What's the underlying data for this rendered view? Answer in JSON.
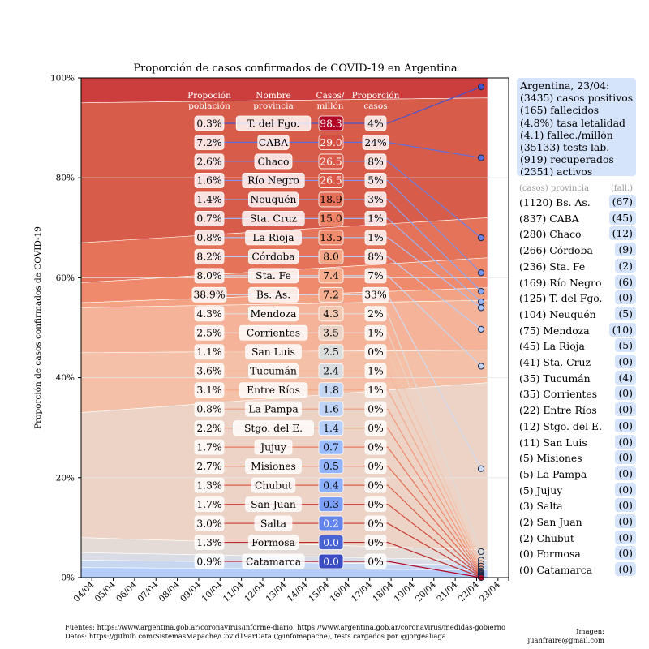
{
  "chart_data": {
    "type": "area",
    "title": "Proporción de casos confirmados de COVID-19 en Argentina",
    "ylabel": "Proporción de casos confirmados de COVID-19",
    "xlabel": "",
    "ylim": [
      0,
      100
    ],
    "yticks": [
      "0%",
      "20%",
      "40%",
      "60%",
      "80%",
      "100%"
    ],
    "categories": [
      "04/04",
      "05/04",
      "06/04",
      "07/04",
      "08/04",
      "09/04",
      "10/04",
      "11/04",
      "12/04",
      "13/04",
      "14/04",
      "15/04",
      "16/04",
      "17/04",
      "18/04",
      "19/04",
      "20/04",
      "21/04",
      "22/04",
      "23/04"
    ],
    "table_headers": {
      "poblacion": "Propoción población",
      "nombre": "Nombre provincia",
      "casos_millon": "Casos/ millón",
      "proporcion": "Proporción casos"
    },
    "rows": [
      {
        "pob": "0.3%",
        "name": "T. del Fgo.",
        "cpm": "98.3",
        "prop": "4%",
        "cpm_color": "#b40426",
        "line_color": "#4452cf",
        "end_y": 98.2
      },
      {
        "pob": "7.2%",
        "name": "CABA",
        "cpm": "29.0",
        "prop": "24%",
        "cpm_color": "#d44e41",
        "line_color": "#5a6fdd",
        "end_y": 84.0
      },
      {
        "pob": "2.6%",
        "name": "Chaco",
        "cpm": "26.5",
        "prop": "8%",
        "cpm_color": "#d95847",
        "line_color": "#6b82e4",
        "end_y": 68.0
      },
      {
        "pob": "1.6%",
        "name": "Río Negro",
        "cpm": "26.5",
        "prop": "5%",
        "cpm_color": "#d95847",
        "line_color": "#7b93ea",
        "end_y": 61.0
      },
      {
        "pob": "1.4%",
        "name": "Neuquén",
        "cpm": "18.9",
        "prop": "3%",
        "cpm_color": "#e57058",
        "line_color": "#8ba5ef",
        "end_y": 57.3
      },
      {
        "pob": "0.7%",
        "name": "Sta. Cruz",
        "cpm": "15.0",
        "prop": "1%",
        "cpm_color": "#ee8468",
        "line_color": "#9bb4f3",
        "end_y": 55.2
      },
      {
        "pob": "0.8%",
        "name": "La Rioja",
        "cpm": "13.5",
        "prop": "1%",
        "cpm_color": "#f08b6e",
        "line_color": "#abc2f5",
        "end_y": 54.0
      },
      {
        "pob": "8.2%",
        "name": "Córdoba",
        "cpm": "8.0",
        "prop": "8%",
        "cpm_color": "#f4a889",
        "line_color": "#b9cdf6",
        "end_y": 49.7
      },
      {
        "pob": "8.0%",
        "name": "Sta. Fe",
        "cpm": "7.4",
        "prop": "7%",
        "cpm_color": "#f5ad8e",
        "line_color": "#c6d5f3",
        "end_y": 42.3
      },
      {
        "pob": "38.9%",
        "name": "Bs. As.",
        "cpm": "7.2",
        "prop": "33%",
        "cpm_color": "#f5af90",
        "line_color": "#d2dbf0",
        "end_y": 21.8
      },
      {
        "pob": "4.3%",
        "name": "Mendoza",
        "cpm": "4.3",
        "prop": "2%",
        "cpm_color": "#f1c9b3",
        "line_color": "#e0dbd8",
        "end_y": 5.2
      },
      {
        "pob": "2.5%",
        "name": "Corrientes",
        "cpm": "3.5",
        "prop": "1%",
        "cpm_color": "#ead4c8",
        "line_color": "#ebd3c6",
        "end_y": 3.5
      },
      {
        "pob": "1.1%",
        "name": "San Luis",
        "cpm": "2.5",
        "prop": "0%",
        "cpm_color": "#dcdddd",
        "line_color": "#f2c6b1",
        "end_y": 2.8
      },
      {
        "pob": "3.6%",
        "name": "Tucumán",
        "cpm": "2.4",
        "prop": "1%",
        "cpm_color": "#d9dce1",
        "line_color": "#f5b89d",
        "end_y": 2.3
      },
      {
        "pob": "3.1%",
        "name": "Entre Ríos",
        "cpm": "1.8",
        "prop": "1%",
        "cpm_color": "#c5d6f2",
        "line_color": "#f4a98b",
        "end_y": 1.7
      },
      {
        "pob": "0.8%",
        "name": "La Pampa",
        "cpm": "1.6",
        "prop": "0%",
        "cpm_color": "#bfd3f6",
        "line_color": "#f29a7c",
        "end_y": 1.3
      },
      {
        "pob": "2.2%",
        "name": "Stgo. del E.",
        "cpm": "1.4",
        "prop": "0%",
        "cpm_color": "#b7cff9",
        "line_color": "#ee8a6d",
        "end_y": 1.0
      },
      {
        "pob": "1.7%",
        "name": "Jujuy",
        "cpm": "0.7",
        "prop": "0%",
        "cpm_color": "#9bbcff",
        "line_color": "#e97a5f",
        "end_y": 0.8
      },
      {
        "pob": "2.7%",
        "name": "Misiones",
        "cpm": "0.5",
        "prop": "0%",
        "cpm_color": "#93b5fe",
        "line_color": "#e36b53",
        "end_y": 0.6
      },
      {
        "pob": "1.3%",
        "name": "Chubut",
        "cpm": "0.4",
        "prop": "0%",
        "cpm_color": "#8db0fe",
        "line_color": "#db5c47",
        "end_y": 0.4
      },
      {
        "pob": "1.7%",
        "name": "San Juan",
        "cpm": "0.3",
        "prop": "0%",
        "cpm_color": "#7b9ff9",
        "line_color": "#d24c3c",
        "end_y": 0.3
      },
      {
        "pob": "3.0%",
        "name": "Salta",
        "cpm": "0.2",
        "prop": "0%",
        "cpm_color": "#6384eb",
        "line_color": "#c73b32",
        "end_y": 0.2
      },
      {
        "pob": "1.3%",
        "name": "Formosa",
        "cpm": "0.0",
        "prop": "0%",
        "cpm_color": "#4a63d3",
        "line_color": "#bc2a2a",
        "end_y": 0.1
      },
      {
        "pob": "0.9%",
        "name": "Catamarca",
        "cpm": "0.0",
        "prop": "0%",
        "cpm_color": "#3b4cc0",
        "line_color": "#b40426",
        "end_y": 0.0
      }
    ]
  },
  "summary": {
    "lines": [
      "Argentina, 23/04:",
      "(3435) casos positivos",
      "(165) fallecidos",
      "(4.8%) tasa letalidad",
      "(4.1) fallec./millón",
      "(35133) tests lab.",
      "(919) recuperados",
      "(2351) activos"
    ]
  },
  "provinces": {
    "header_left": "(casos) provincia",
    "header_right": "(fall.)",
    "items": [
      {
        "label": "(1120) Bs. As.",
        "deaths": "(67)"
      },
      {
        "label": "(837) CABA",
        "deaths": "(45)"
      },
      {
        "label": "(280) Chaco",
        "deaths": "(12)"
      },
      {
        "label": "(266) Córdoba",
        "deaths": "(9)"
      },
      {
        "label": "(236) Sta. Fe",
        "deaths": "(2)"
      },
      {
        "label": "(169) Río Negro",
        "deaths": "(6)"
      },
      {
        "label": "(125) T. del Fgo.",
        "deaths": "(0)"
      },
      {
        "label": "(104) Neuquén",
        "deaths": "(5)"
      },
      {
        "label": "(75) Mendoza",
        "deaths": "(10)"
      },
      {
        "label": "(45) La Rioja",
        "deaths": "(5)"
      },
      {
        "label": "(41) Sta. Cruz",
        "deaths": "(0)"
      },
      {
        "label": "(35) Tucumán",
        "deaths": "(4)"
      },
      {
        "label": "(35) Corrientes",
        "deaths": "(0)"
      },
      {
        "label": "(22) Entre Ríos",
        "deaths": "(0)"
      },
      {
        "label": "(12) Stgo. del E.",
        "deaths": "(0)"
      },
      {
        "label": "(11) San Luis",
        "deaths": "(0)"
      },
      {
        "label": "(5) Misiones",
        "deaths": "(0)"
      },
      {
        "label": "(5) La Pampa",
        "deaths": "(0)"
      },
      {
        "label": "(5) Jujuy",
        "deaths": "(0)"
      },
      {
        "label": "(3) Salta",
        "deaths": "(0)"
      },
      {
        "label": "(2) San Juan",
        "deaths": "(0)"
      },
      {
        "label": "(2) Chubut",
        "deaths": "(0)"
      },
      {
        "label": "(0) Formosa",
        "deaths": "(0)"
      },
      {
        "label": "(0) Catamarca",
        "deaths": "(0)"
      }
    ]
  },
  "footer": {
    "line1": "Fuentes: https://www.argentina.gob.ar/coronavirus/informe-diario, https://www.argentina.gob.ar/coronavirus/medidas-gobierno",
    "line2": "Datos: https://github.com/SistemasMapache/Covid19arData (@infomapache), tests cargados por @jorgealiaga.",
    "credit1": "Imagen:",
    "credit2": "juanfraire@gmail.com"
  }
}
